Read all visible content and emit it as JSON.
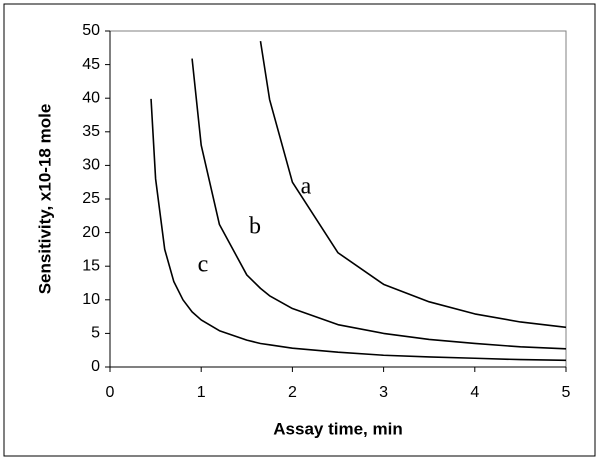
{
  "chart_data": {
    "type": "line",
    "xlabel": "Assay time, min",
    "ylabel": "Sensitivity, x10-18 mole",
    "x": [
      0.45,
      0.5,
      0.6,
      0.7,
      0.8,
      0.9,
      1.0,
      1.2,
      1.5,
      1.65,
      1.75,
      2.0,
      2.5,
      3.0,
      3.5,
      4.0,
      4.5,
      5.0
    ],
    "series": [
      {
        "name": "a",
        "color": "#000000",
        "values": [
          null,
          null,
          null,
          null,
          null,
          null,
          null,
          null,
          null,
          48.5,
          39.8,
          27.5,
          17.0,
          12.3,
          9.7,
          7.9,
          6.7,
          5.9
        ]
      },
      {
        "name": "b",
        "color": "#000000",
        "values": [
          null,
          null,
          null,
          null,
          null,
          45.9,
          33.0,
          21.2,
          13.7,
          11.7,
          10.6,
          8.7,
          6.3,
          5.0,
          4.1,
          3.5,
          3.0,
          2.7
        ]
      },
      {
        "name": "c",
        "color": "#000000",
        "values": [
          39.9,
          28.0,
          17.5,
          12.7,
          10.0,
          8.2,
          7.0,
          5.4,
          4.0,
          3.5,
          3.3,
          2.8,
          2.2,
          1.75,
          1.5,
          1.3,
          1.1,
          1.0
        ]
      }
    ],
    "xlim": [
      0,
      5
    ],
    "xticks": [
      0,
      1,
      2,
      3,
      4,
      5
    ],
    "ylim": [
      0,
      50
    ],
    "yticks": [
      0,
      5,
      10,
      15,
      20,
      25,
      30,
      35,
      40,
      45,
      50
    ],
    "grid": false
  }
}
